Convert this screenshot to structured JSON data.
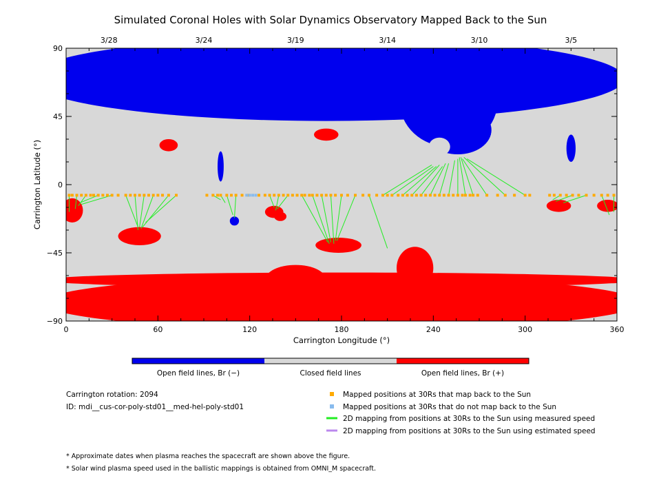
{
  "chart_data": {
    "type": "map",
    "title": "Simulated Coronal Holes with Solar Dynamics Observatory Mapped Back to the Sun",
    "xlabel": "Carrington Longitude (°)",
    "ylabel": "Carrington Latitude (°)",
    "xlim": [
      0,
      360
    ],
    "ylim": [
      -90,
      90
    ],
    "xticks": [
      0,
      60,
      120,
      180,
      240,
      300,
      360
    ],
    "yticks": [
      90,
      45,
      0,
      -45,
      -90
    ],
    "top_dates": [
      {
        "label": "3/28",
        "lon": 28
      },
      {
        "label": "3/24",
        "lon": 90
      },
      {
        "label": "3/19",
        "lon": 150
      },
      {
        "label": "3/14",
        "lon": 210
      },
      {
        "label": "3/10",
        "lon": 270
      },
      {
        "label": "3/5",
        "lon": 330
      }
    ],
    "colors": {
      "closed": "#d8d8d8",
      "open_neg": "#0000ee",
      "open_pos": "#ff0000",
      "mapped": "#ffaa00",
      "unmapped": "#88bbee",
      "measured": "#22ee22",
      "estimated": "#bb88ee"
    },
    "regions": [
      {
        "polarity": "neg",
        "lon": 170,
        "lat": 70,
        "rx": 195,
        "ry": 28
      },
      {
        "polarity": "neg",
        "lon": 250,
        "lat": 55,
        "rx": 32,
        "ry": 30
      },
      {
        "polarity": "neg",
        "lon": 256,
        "lat": 36,
        "rx": 22,
        "ry": 16
      },
      {
        "polarity": "closed",
        "lon": 244,
        "lat": 25,
        "rx": 7,
        "ry": 6
      },
      {
        "polarity": "neg",
        "lon": 330,
        "lat": 24,
        "rx": 3,
        "ry": 9
      },
      {
        "polarity": "neg",
        "lon": 101,
        "lat": 12,
        "rx": 2,
        "ry": 10
      },
      {
        "polarity": "neg",
        "lon": 110,
        "lat": -24,
        "rx": 3,
        "ry": 3
      },
      {
        "polarity": "pos",
        "lon": 180,
        "lat": -78,
        "rx": 195,
        "ry": 18
      },
      {
        "polarity": "pos",
        "lon": 180,
        "lat": -63,
        "rx": 195,
        "ry": 5
      },
      {
        "polarity": "pos",
        "lon": 150,
        "lat": -63,
        "rx": 20,
        "ry": 10
      },
      {
        "polarity": "pos",
        "lon": 228,
        "lat": -55,
        "rx": 12,
        "ry": 14
      },
      {
        "polarity": "pos",
        "lon": 4,
        "lat": -17,
        "rx": 7,
        "ry": 8
      },
      {
        "polarity": "pos",
        "lon": 48,
        "lat": -34,
        "rx": 14,
        "ry": 6
      },
      {
        "polarity": "pos",
        "lon": 136,
        "lat": -18,
        "rx": 6,
        "ry": 4
      },
      {
        "polarity": "pos",
        "lon": 178,
        "lat": -40,
        "rx": 15,
        "ry": 5
      },
      {
        "polarity": "pos",
        "lon": 67,
        "lat": 26,
        "rx": 6,
        "ry": 4
      },
      {
        "polarity": "pos",
        "lon": 170,
        "lat": 33,
        "rx": 8,
        "ry": 4
      },
      {
        "polarity": "pos",
        "lon": 322,
        "lat": -14,
        "rx": 8,
        "ry": 4
      },
      {
        "polarity": "pos",
        "lon": 354,
        "lat": -14,
        "rx": 7,
        "ry": 4
      },
      {
        "polarity": "pos",
        "lon": 140,
        "lat": -21,
        "rx": 4,
        "ry": 3
      }
    ],
    "mapped_lat": -7,
    "mapped_lons": [
      2,
      4,
      7,
      10,
      13,
      16,
      18,
      21,
      24,
      27,
      30,
      34,
      39,
      42,
      45,
      48,
      51,
      54,
      57,
      60,
      63,
      67,
      72,
      92,
      96,
      99,
      101,
      105,
      108,
      111,
      115,
      119,
      126,
      130,
      133,
      136,
      139,
      142,
      145,
      148,
      151,
      154,
      156,
      159,
      161,
      164,
      167,
      170,
      173,
      176,
      180,
      184,
      189,
      194,
      198,
      203,
      207,
      210,
      213,
      217,
      220,
      223,
      226,
      229,
      232,
      235,
      238,
      241,
      244,
      247,
      250,
      253,
      256,
      259,
      261,
      264,
      266,
      269,
      275,
      282,
      287,
      293,
      300,
      303,
      316,
      319,
      323,
      327,
      331,
      335,
      340,
      345,
      350,
      354,
      358
    ],
    "unmapped_lons": [
      118,
      120,
      122,
      124
    ],
    "mappings": [
      {
        "from": 2,
        "to": [
          2,
          -18
        ]
      },
      {
        "from": 7,
        "to": [
          6,
          -16
        ]
      },
      {
        "from": 13,
        "to": [
          8,
          -14
        ]
      },
      {
        "from": 21,
        "to": [
          9,
          -12
        ]
      },
      {
        "from": 30,
        "to": [
          10,
          -13
        ]
      },
      {
        "from": 39,
        "to": [
          47,
          -28
        ]
      },
      {
        "from": 45,
        "to": [
          47,
          -30
        ]
      },
      {
        "from": 51,
        "to": [
          48,
          -28
        ]
      },
      {
        "from": 57,
        "to": [
          49,
          -29
        ]
      },
      {
        "from": 67,
        "to": [
          50,
          -28
        ]
      },
      {
        "from": 72,
        "to": [
          52,
          -25
        ]
      },
      {
        "from": 96,
        "to": [
          101,
          -10
        ]
      },
      {
        "from": 101,
        "to": [
          104,
          -12
        ]
      },
      {
        "from": 105,
        "to": [
          109,
          -20
        ]
      },
      {
        "from": 111,
        "to": [
          110,
          -22
        ]
      },
      {
        "from": 133,
        "to": [
          136,
          -15
        ]
      },
      {
        "from": 139,
        "to": [
          137,
          -17
        ]
      },
      {
        "from": 145,
        "to": [
          138,
          -16
        ]
      },
      {
        "from": 154,
        "to": [
          171,
          -38
        ]
      },
      {
        "from": 161,
        "to": [
          172,
          -39
        ]
      },
      {
        "from": 167,
        "to": [
          173,
          -38
        ]
      },
      {
        "from": 173,
        "to": [
          175,
          -39
        ]
      },
      {
        "from": 180,
        "to": [
          176,
          -37
        ]
      },
      {
        "from": 189,
        "to": [
          177,
          -37
        ]
      },
      {
        "from": 198,
        "to": [
          210,
          -42
        ]
      },
      {
        "from": 207,
        "to": [
          239,
          13
        ]
      },
      {
        "from": 213,
        "to": [
          240,
          12
        ]
      },
      {
        "from": 220,
        "to": [
          242,
          12
        ]
      },
      {
        "from": 226,
        "to": [
          244,
          13
        ]
      },
      {
        "from": 232,
        "to": [
          246,
          12
        ]
      },
      {
        "from": 238,
        "to": [
          248,
          14
        ]
      },
      {
        "from": 244,
        "to": [
          250,
          14
        ]
      },
      {
        "from": 250,
        "to": [
          254,
          16
        ]
      },
      {
        "from": 256,
        "to": [
          256,
          17
        ]
      },
      {
        "from": 261,
        "to": [
          257,
          18
        ]
      },
      {
        "from": 266,
        "to": [
          258,
          18
        ]
      },
      {
        "from": 275,
        "to": [
          259,
          17
        ]
      },
      {
        "from": 287,
        "to": [
          260,
          18
        ]
      },
      {
        "from": 300,
        "to": [
          262,
          17
        ]
      },
      {
        "from": 323,
        "to": [
          318,
          -10
        ]
      },
      {
        "from": 331,
        "to": [
          320,
          -11
        ]
      },
      {
        "from": 340,
        "to": [
          325,
          -12
        ]
      },
      {
        "from": 350,
        "to": [
          355,
          -20
        ]
      },
      {
        "from": 358,
        "to": [
          358,
          -18
        ]
      }
    ]
  },
  "colorbar": {
    "labels": [
      "Open field lines, Br (−)",
      "Closed field lines",
      "Open field lines, Br (+)"
    ]
  },
  "info": {
    "rotation": "Carrington rotation: 2094",
    "id": "ID: mdi__cus-cor-poly-std01__med-hel-poly-std01"
  },
  "legend": {
    "mapped": "Mapped positions at 30Rs that map back to the Sun",
    "unmapped": "Mapped positions at 30Rs that do not map back to the Sun",
    "measured": "2D mapping from positions at 30Rs to the Sun using measured speed",
    "estimated": "2D mapping from positions at 30Rs to the Sun using estimated speed"
  },
  "notes": [
    "* Approximate dates when plasma reaches the spacecraft are shown above the figure.",
    "* Solar wind plasma speed used in the ballistic mappings is obtained from OMNI_M spacecraft."
  ]
}
